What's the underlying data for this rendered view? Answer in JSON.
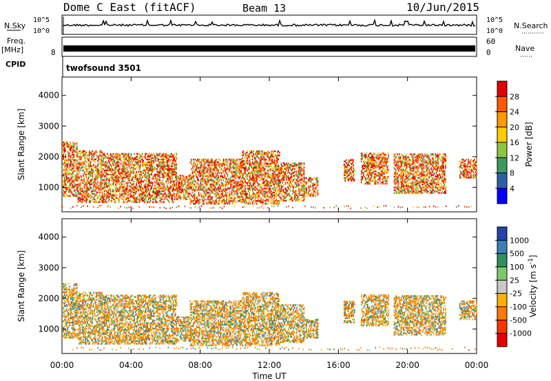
{
  "header": {
    "site": "Dome C East (fitACF)",
    "beam": "Beam 13",
    "date": "10/Jun/2015"
  },
  "chart_data": [
    {
      "type": "line",
      "name": "noise-panel",
      "left_label": "N.Sky",
      "right_label": "N.Search",
      "yticks": [
        "10^5",
        "10^0"
      ],
      "ytick_colors": [
        "#000000",
        "#000000"
      ]
    },
    {
      "type": "line",
      "name": "freq-panel",
      "left_label": "Freq.",
      "left_unit": "[MHz]",
      "left_ticks": [
        "8"
      ],
      "right_label": "Nave",
      "right_ticks": [
        "60",
        "0"
      ]
    },
    {
      "type": "table",
      "name": "cpid-panel",
      "left_label": "CPID",
      "value": "twofsound 3501"
    },
    {
      "type": "heatmap",
      "name": "power-panel",
      "ylabel": "Slant Range [km]",
      "ylim": [
        200,
        4600
      ],
      "yticks": [
        1000,
        2000,
        3000,
        4000
      ],
      "xlim": [
        0,
        24
      ],
      "colorbar": {
        "label": "Power [dB]",
        "ticks": [
          "28",
          "24",
          "20",
          "16",
          "12",
          "8",
          "4"
        ],
        "colors": [
          "#e60000",
          "#ff5a00",
          "#ff9900",
          "#ffcc00",
          "#8dc63f",
          "#3c9a5f",
          "#2d5fa8",
          "#0000ff"
        ]
      }
    },
    {
      "type": "heatmap",
      "name": "velocity-panel",
      "ylabel": "Slant Range [km]",
      "ylim": [
        200,
        4600
      ],
      "yticks": [
        1000,
        2000,
        3000,
        4000
      ],
      "xlim": [
        0,
        24
      ],
      "xlabel": "Time UT",
      "xticks": [
        "00:00",
        "04:00",
        "08:00",
        "12:00",
        "16:00",
        "20:00",
        "00:00"
      ],
      "colorbar": {
        "label": "Velocity [m s",
        "label_sup": "-1",
        "label_close": "]",
        "ticks": [
          "1000",
          "500",
          "100",
          "25",
          "-25",
          "-100",
          "-500",
          "-1000"
        ],
        "colors": [
          "#2244aa",
          "#3a7fb8",
          "#2f8f5f",
          "#7cc96a",
          "#c8c8c8",
          "#ffb000",
          "#ff7a00",
          "#ff3300",
          "#e60000"
        ]
      }
    }
  ],
  "data_regions": [
    {
      "t0": 0.0,
      "t1": 0.9,
      "r0": 700,
      "r1": 2500
    },
    {
      "t0": 0.9,
      "t1": 2.3,
      "r0": 500,
      "r1": 2200
    },
    {
      "t0": 2.3,
      "t1": 4.5,
      "r0": 500,
      "r1": 2100
    },
    {
      "t0": 4.5,
      "t1": 6.6,
      "r0": 500,
      "r1": 2100
    },
    {
      "t0": 6.6,
      "t1": 7.4,
      "r0": 600,
      "r1": 1400
    },
    {
      "t0": 7.4,
      "t1": 10.4,
      "r0": 450,
      "r1": 1900
    },
    {
      "t0": 10.4,
      "t1": 12.6,
      "r0": 450,
      "r1": 2200
    },
    {
      "t0": 12.6,
      "t1": 14.0,
      "r0": 550,
      "r1": 1800
    },
    {
      "t0": 14.0,
      "t1": 14.8,
      "r0": 700,
      "r1": 1300
    },
    {
      "t0": 16.3,
      "t1": 16.9,
      "r0": 1200,
      "r1": 1900
    },
    {
      "t0": 17.3,
      "t1": 18.9,
      "r0": 1100,
      "r1": 2100
    },
    {
      "t0": 19.2,
      "t1": 20.8,
      "r0": 800,
      "r1": 2100
    },
    {
      "t0": 20.8,
      "t1": 22.2,
      "r0": 800,
      "r1": 2100
    },
    {
      "t0": 23.0,
      "t1": 24.0,
      "r0": 1300,
      "r1": 1900
    }
  ]
}
